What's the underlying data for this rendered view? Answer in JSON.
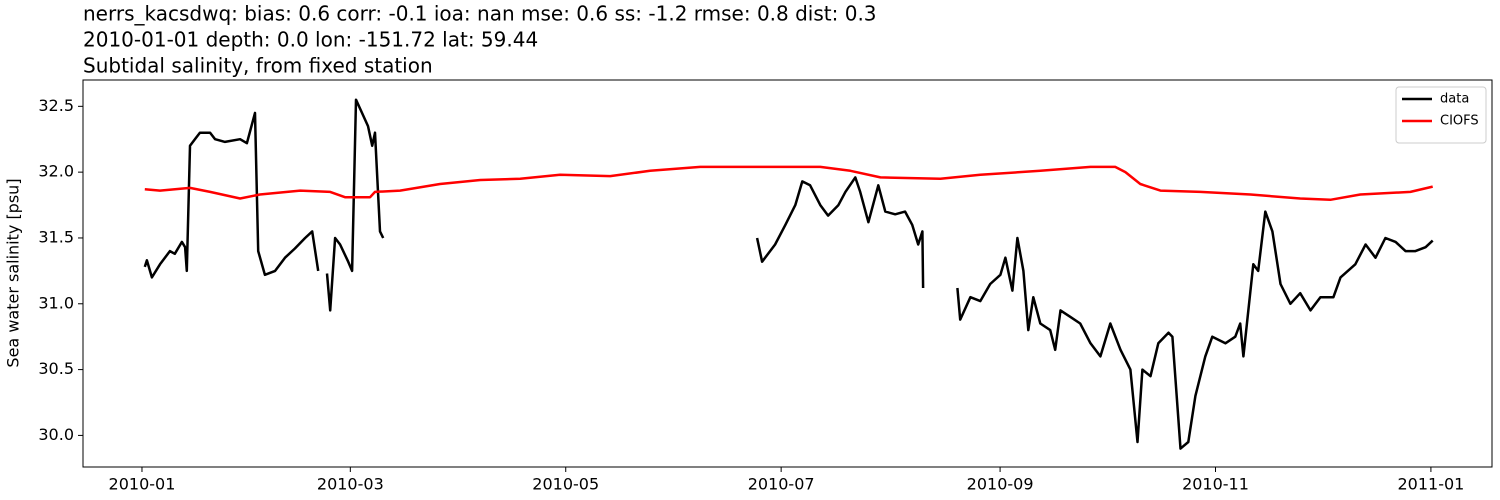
{
  "chart_data": {
    "type": "line",
    "title": [
      "nerrs_kacsdwq: bias: 0.6  corr: -0.1  ioa: nan  mse: 0.6  ss: -1.2  rmse: 0.8  dist: 0.3",
      "2010-01-01 depth: 0.0 lon: -151.72 lat: 59.44",
      "Subtidal salinity, from fixed station"
    ],
    "ylabel": "Sea water salinity [psu]",
    "xlim": [
      -16.7,
      382.3
    ],
    "ylim": [
      29.76,
      32.7
    ],
    "xticks": [
      {
        "value": 0,
        "label": "2010-01"
      },
      {
        "value": 59,
        "label": "2010-03"
      },
      {
        "value": 120,
        "label": "2010-05"
      },
      {
        "value": 181,
        "label": "2010-07"
      },
      {
        "value": 243,
        "label": "2010-09"
      },
      {
        "value": 304,
        "label": "2010-11"
      },
      {
        "value": 365,
        "label": "2011-01"
      }
    ],
    "yticks": [
      {
        "value": 30,
        "label": "30.0"
      },
      30.5,
      {
        "value": 31,
        "label": "31.0"
      },
      31.5,
      {
        "value": 32,
        "label": "32.0"
      },
      32.5
    ],
    "grid": false,
    "legend": "upper right",
    "series": [
      {
        "name": "data",
        "color": "#000000",
        "x": [
          0.8,
          1.4,
          2.8,
          5.1,
          7.9,
          9.3,
          11.3,
          12.2,
          12.7,
          13.6,
          15.0,
          16.4,
          19.3,
          20.7,
          23.5,
          27.8,
          29.7,
          32.0,
          32.9,
          34.8,
          37.7,
          40.5,
          43.3,
          46.2,
          48.2,
          49.9,
          51,
          52.4,
          53.3,
          54.7,
          56.1,
          58.4,
          59.5,
          60.6,
          62.3,
          64.0,
          65.2,
          66.0,
          67.4,
          68.3,
          120,
          174.2,
          175.6,
          179.3,
          182.2,
          185.0,
          187.0,
          189.2,
          192.1,
          194.3,
          197.2,
          199.2,
          202.0,
          203.4,
          205.7,
          208.5,
          210.5,
          213.3,
          216.1,
          218.1,
          219.8,
          221.0,
          221.2,
          225,
          230.9,
          231.7,
          234.6,
          237.4,
          240.2,
          243.1,
          244.5,
          246.5,
          247.9,
          249.6,
          251.0,
          252.4,
          254.4,
          257.2,
          258.6,
          260.1,
          262.9,
          265.7,
          268.6,
          271.4,
          274.2,
          277.1,
          279.9,
          281.9,
          283.3,
          285.6,
          287.8,
          290.7,
          291.8,
          294.1,
          296.3,
          298.3,
          301.1,
          303.1,
          306.8,
          309.6,
          311.0,
          311.9,
          314.7,
          316.1,
          318.1,
          320.1,
          322.4,
          325.2,
          328.0,
          330.9,
          333.7,
          337.4,
          339.4,
          343.6,
          346.5,
          349.3,
          352.1,
          355.0,
          357.8,
          360.6,
          363.5,
          365.5
        ],
        "values": [
          31.28,
          31.33,
          31.2,
          31.3,
          31.4,
          31.38,
          31.47,
          31.43,
          31.25,
          32.2,
          32.25,
          32.3,
          32.3,
          32.25,
          32.23,
          32.25,
          32.22,
          32.45,
          31.4,
          31.22,
          31.25,
          31.35,
          31.42,
          31.5,
          31.55,
          31.25,
          null,
          31.23,
          30.95,
          31.5,
          31.45,
          31.32,
          31.25,
          32.55,
          32.45,
          32.35,
          32.2,
          32.3,
          31.55,
          31.5,
          null,
          31.5,
          31.32,
          31.45,
          31.6,
          31.75,
          31.93,
          31.9,
          31.75,
          31.67,
          31.75,
          31.85,
          31.96,
          31.85,
          31.62,
          31.9,
          31.7,
          31.68,
          31.7,
          31.6,
          31.45,
          31.55,
          31.12,
          null,
          31.12,
          30.88,
          31.05,
          31.02,
          31.15,
          31.22,
          31.35,
          31.1,
          31.5,
          31.25,
          30.8,
          31.05,
          30.85,
          30.8,
          30.65,
          30.95,
          30.9,
          30.85,
          30.7,
          30.6,
          30.85,
          30.65,
          30.5,
          29.95,
          30.5,
          30.45,
          30.7,
          30.78,
          30.75,
          29.9,
          29.95,
          30.3,
          30.6,
          30.75,
          30.7,
          30.75,
          30.85,
          30.6,
          31.3,
          31.25,
          31.7,
          31.55,
          31.15,
          31.0,
          31.08,
          30.95,
          31.05,
          31.05,
          31.2,
          31.3,
          31.45,
          31.35,
          31.5,
          31.47,
          31.4,
          31.4,
          31.43,
          31.48
        ]
      },
      {
        "name": "CIOFS",
        "color": "#ff0000",
        "x": [
          0.8,
          5.1,
          13.6,
          19.3,
          27.8,
          33.4,
          44.8,
          53.3,
          57.5,
          64.6,
          66.0,
          73.1,
          84.4,
          95.8,
          107.1,
          118.4,
          132.6,
          143.9,
          158.1,
          175.1,
          192.1,
          200.6,
          209.1,
          226.1,
          237.4,
          254.4,
          268.6,
          275.6,
          278.5,
          282.7,
          288.4,
          299.7,
          313.9,
          328.0,
          336.5,
          345.0,
          359.2,
          365.5
        ],
        "values": [
          31.87,
          31.86,
          31.88,
          31.85,
          31.8,
          31.83,
          31.86,
          31.85,
          31.81,
          31.81,
          31.85,
          31.86,
          31.91,
          31.94,
          31.95,
          31.98,
          31.97,
          32.01,
          32.04,
          32.04,
          32.04,
          32.01,
          31.96,
          31.95,
          31.98,
          32.01,
          32.04,
          32.04,
          32.0,
          31.91,
          31.86,
          31.85,
          31.83,
          31.8,
          31.79,
          31.83,
          31.85,
          31.89
        ]
      }
    ]
  }
}
